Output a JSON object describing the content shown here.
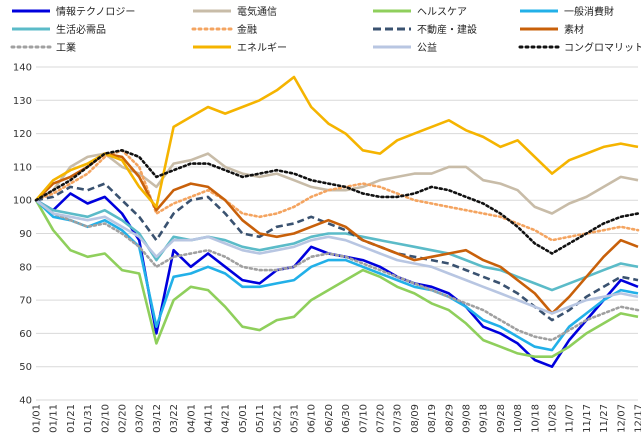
{
  "chart_data": {
    "type": "line",
    "title": "",
    "xlabel": "",
    "ylabel": "",
    "ylim": [
      40,
      140
    ],
    "yticks": [
      40,
      50,
      60,
      70,
      80,
      90,
      100,
      110,
      120,
      130,
      140
    ],
    "grid": true,
    "legend_position": "top",
    "x": [
      "01/01",
      "01/11",
      "01/21",
      "01/31",
      "02/10",
      "02/20",
      "03/02",
      "03/12",
      "03/22",
      "04/01",
      "04/11",
      "04/21",
      "05/01",
      "05/11",
      "05/21",
      "05/31",
      "06/10",
      "06/20",
      "06/30",
      "07/10",
      "07/20",
      "07/30",
      "08/09",
      "08/19",
      "08/29",
      "09/08",
      "09/18",
      "09/28",
      "10/08",
      "10/18",
      "10/28",
      "11/07",
      "11/17",
      "11/27",
      "12/07",
      "12/17"
    ],
    "series": [
      {
        "name": "情報テクノロジー",
        "color": "#0000dd",
        "dash": "solid",
        "values": [
          100,
          97,
          102,
          99,
          101,
          96,
          88,
          60,
          85,
          80,
          84,
          80,
          76,
          75,
          79,
          80,
          86,
          84,
          83,
          82,
          80,
          77,
          75,
          74,
          72,
          68,
          62,
          60,
          57,
          52,
          50,
          58,
          64,
          70,
          76,
          74
        ]
      },
      {
        "name": "電気通信",
        "color": "#c8bca8",
        "dash": "solid",
        "values": [
          100,
          103,
          110,
          113,
          114,
          110,
          108,
          104,
          111,
          112,
          114,
          110,
          108,
          107,
          108,
          106,
          104,
          103,
          103,
          104,
          106,
          107,
          108,
          108,
          110,
          110,
          106,
          105,
          103,
          98,
          96,
          99,
          101,
          104,
          107,
          106
        ]
      },
      {
        "name": "ヘルスケア",
        "color": "#8fcf5c",
        "dash": "solid",
        "values": [
          100,
          91,
          85,
          83,
          84,
          79,
          78,
          57,
          70,
          74,
          73,
          68,
          62,
          61,
          64,
          65,
          70,
          73,
          76,
          79,
          77,
          74,
          72,
          69,
          67,
          63,
          58,
          56,
          54,
          53,
          53,
          56,
          60,
          63,
          66,
          65
        ]
      },
      {
        "name": "一般消費財",
        "color": "#22b0e8",
        "dash": "solid",
        "values": [
          100,
          95,
          94,
          92,
          94,
          91,
          86,
          62,
          77,
          78,
          80,
          78,
          74,
          74,
          75,
          76,
          80,
          82,
          82,
          80,
          78,
          76,
          74,
          73,
          71,
          68,
          64,
          62,
          59,
          56,
          55,
          62,
          66,
          70,
          73,
          72
        ]
      },
      {
        "name": "生活必需品",
        "color": "#5bbbc8",
        "dash": "solid",
        "values": [
          100,
          97,
          96,
          95,
          97,
          94,
          90,
          82,
          89,
          88,
          89,
          88,
          86,
          85,
          86,
          87,
          89,
          90,
          90,
          89,
          88,
          87,
          86,
          85,
          84,
          82,
          80,
          79,
          77,
          75,
          73,
          75,
          77,
          79,
          81,
          80
        ]
      },
      {
        "name": "金融",
        "color": "#f4a460",
        "dash": "dot",
        "values": [
          100,
          102,
          105,
          108,
          113,
          115,
          110,
          96,
          99,
          101,
          103,
          100,
          96,
          95,
          96,
          98,
          101,
          103,
          104,
          105,
          104,
          102,
          100,
          99,
          98,
          97,
          96,
          95,
          93,
          91,
          88,
          89,
          90,
          91,
          92,
          91
        ]
      },
      {
        "name": "不動産・建設",
        "color": "#3a5270",
        "dash": "dash",
        "values": [
          100,
          101,
          104,
          103,
          105,
          100,
          95,
          88,
          96,
          100,
          101,
          96,
          90,
          89,
          92,
          93,
          95,
          93,
          91,
          88,
          86,
          84,
          83,
          82,
          81,
          79,
          77,
          75,
          72,
          68,
          64,
          67,
          71,
          74,
          77,
          76
        ]
      },
      {
        "name": "素材",
        "color": "#c8600a",
        "dash": "solid",
        "values": [
          100,
          105,
          107,
          110,
          114,
          113,
          107,
          97,
          103,
          105,
          104,
          100,
          94,
          90,
          89,
          90,
          92,
          94,
          92,
          88,
          86,
          84,
          82,
          83,
          84,
          85,
          82,
          80,
          76,
          72,
          66,
          71,
          77,
          83,
          88,
          86
        ]
      },
      {
        "name": "工業",
        "color": "#a0a0a0",
        "dash": "dot",
        "values": [
          100,
          96,
          94,
          92,
          93,
          90,
          86,
          80,
          83,
          84,
          85,
          83,
          80,
          79,
          79,
          80,
          83,
          84,
          83,
          81,
          79,
          77,
          75,
          73,
          71,
          69,
          67,
          64,
          61,
          59,
          58,
          61,
          64,
          66,
          68,
          67
        ]
      },
      {
        "name": "エネルギー",
        "color": "#f5b400",
        "dash": "solid",
        "values": [
          100,
          106,
          109,
          111,
          114,
          112,
          104,
          98,
          122,
          125,
          128,
          126,
          128,
          130,
          133,
          137,
          128,
          123,
          120,
          115,
          114,
          118,
          120,
          122,
          124,
          121,
          119,
          116,
          118,
          113,
          108,
          112,
          114,
          116,
          117,
          116
        ]
      },
      {
        "name": "公益",
        "color": "#b8c6e2",
        "dash": "solid",
        "values": [
          100,
          96,
          95,
          94,
          95,
          92,
          89,
          83,
          88,
          88,
          89,
          87,
          85,
          84,
          85,
          86,
          88,
          89,
          88,
          86,
          84,
          82,
          81,
          80,
          78,
          76,
          74,
          72,
          70,
          68,
          66,
          68,
          70,
          71,
          72,
          71
        ]
      },
      {
        "name": "コングロマリット",
        "color": "#111111",
        "dash": "dot",
        "values": [
          100,
          103,
          106,
          110,
          114,
          115,
          113,
          107,
          109,
          111,
          111,
          109,
          107,
          108,
          109,
          108,
          106,
          105,
          104,
          102,
          101,
          101,
          102,
          104,
          103,
          101,
          99,
          96,
          92,
          87,
          84,
          87,
          90,
          93,
          95,
          96
        ]
      }
    ]
  }
}
